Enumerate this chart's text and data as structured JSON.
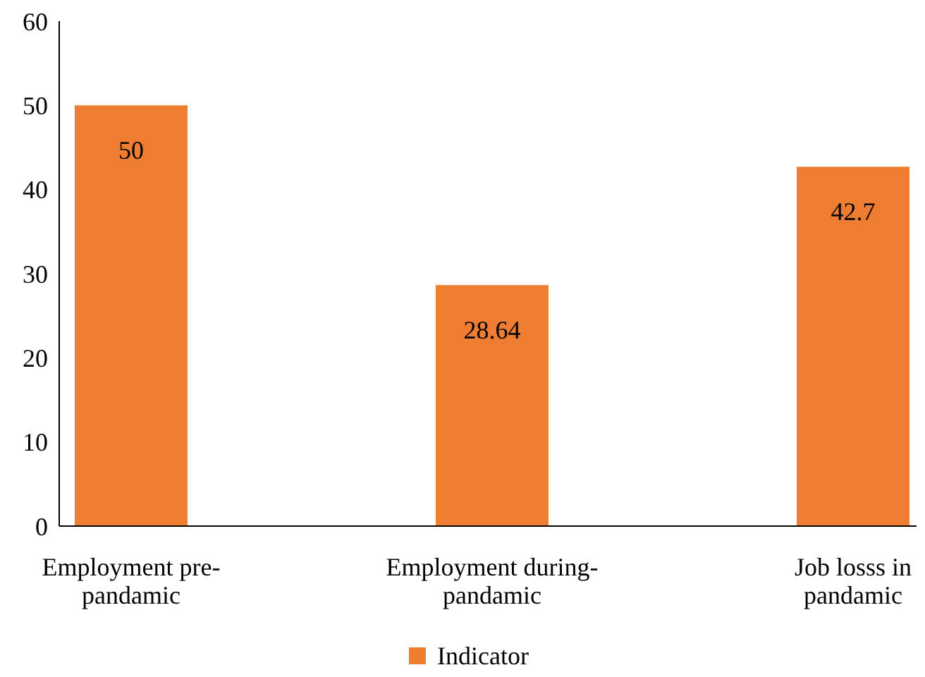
{
  "chart_data": {
    "type": "bar",
    "categories": [
      "Employment pre-pandamic",
      "Employment during-pandamic",
      "Job losss in pandamic"
    ],
    "series": [
      {
        "name": "Indicator",
        "color": "#ed7d31",
        "values": [
          50,
          28.64,
          42.7
        ]
      }
    ],
    "ylim": [
      0,
      60
    ],
    "yticks": [
      0,
      10,
      20,
      30,
      40,
      50,
      60
    ],
    "grid": false,
    "legend": "bottom",
    "data_labels": true
  }
}
